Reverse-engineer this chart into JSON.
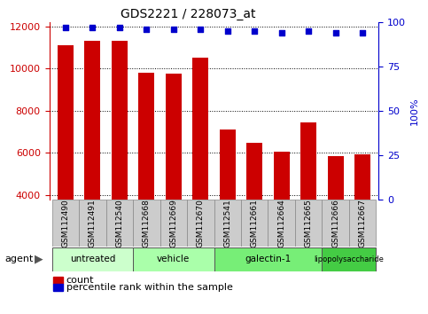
{
  "title": "GDS2221 / 228073_at",
  "samples": [
    "GSM112490",
    "GSM112491",
    "GSM112540",
    "GSM112668",
    "GSM112669",
    "GSM112670",
    "GSM112541",
    "GSM112661",
    "GSM112664",
    "GSM112665",
    "GSM112666",
    "GSM112667"
  ],
  "counts": [
    11100,
    11300,
    11300,
    9800,
    9750,
    10500,
    7100,
    6500,
    6050,
    7450,
    5850,
    5950
  ],
  "percentile_ranks": [
    97,
    97,
    97,
    96,
    96,
    96,
    95,
    95,
    94,
    95,
    94,
    94
  ],
  "bar_color": "#cc0000",
  "dot_color": "#0000cc",
  "ylim_left": [
    3800,
    12200
  ],
  "ylim_right": [
    0,
    100
  ],
  "yticks_left": [
    4000,
    6000,
    8000,
    10000,
    12000
  ],
  "yticks_right": [
    0,
    25,
    50,
    75,
    100
  ],
  "groups": [
    {
      "label": "untreated",
      "start": 0,
      "end": 3,
      "color": "#ccffcc"
    },
    {
      "label": "vehicle",
      "start": 3,
      "end": 6,
      "color": "#aaffaa"
    },
    {
      "label": "galectin-1",
      "start": 6,
      "end": 10,
      "color": "#77ee77"
    },
    {
      "label": "lipopolysaccharide",
      "start": 10,
      "end": 12,
      "color": "#44cc44"
    }
  ],
  "agent_label": "agent",
  "legend_count_label": "count",
  "legend_pct_label": "percentile rank within the sample",
  "bar_bottom": 3800,
  "pct_scale_factor": 84.7
}
